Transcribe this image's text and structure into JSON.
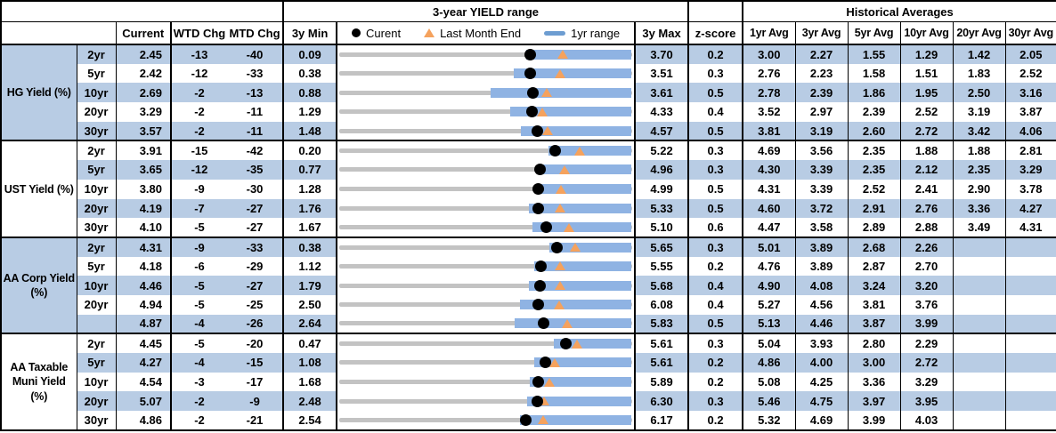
{
  "header": {
    "yield_range_title": "3-year YIELD range",
    "historical_title": "Historical Averages",
    "col_current": "Current",
    "col_wtd": "WTD Chg",
    "col_mtd": "MTD Chg",
    "col_3y_min": "3y Min",
    "col_3y_max": "3y Max",
    "col_zscore": "z-score",
    "avg_cols": [
      "1yr Avg",
      "3yr Avg",
      "5yr Avg",
      "10yr Avg",
      "20yr Avg",
      "30yr Avg"
    ],
    "legend": {
      "current": "Curent",
      "last_month": "Last Month End",
      "range": "1yr range"
    }
  },
  "colors": {
    "row_shade": "#b8cce4",
    "range_bar_blue": "#8fb3e3",
    "track_gray": "#c3c3c3",
    "last_month_marker_orange": "#f5a25d",
    "current_marker_black": "#000000"
  },
  "sections": [
    {
      "label": "HG Yield (%)",
      "rows": [
        {
          "tenor": "2yr",
          "current": "2.45",
          "wtd_chg": "-13",
          "mtd_chg": "-40",
          "min_3y": "0.09",
          "max_3y": "3.70",
          "z_score": "0.2",
          "avgs": [
            "3.00",
            "2.27",
            "1.55",
            "1.29",
            "1.42",
            "2.05"
          ],
          "range_1yr": [
            2.4,
            3.7
          ],
          "last_month_end": 2.85
        },
        {
          "tenor": "5yr",
          "current": "2.42",
          "wtd_chg": "-12",
          "mtd_chg": "-33",
          "min_3y": "0.38",
          "max_3y": "3.51",
          "z_score": "0.3",
          "avgs": [
            "2.76",
            "2.23",
            "1.58",
            "1.51",
            "1.83",
            "2.52"
          ],
          "range_1yr": [
            2.25,
            3.51
          ],
          "last_month_end": 2.75
        },
        {
          "tenor": "10yr",
          "current": "2.69",
          "wtd_chg": "-2",
          "mtd_chg": "-13",
          "min_3y": "0.88",
          "max_3y": "3.61",
          "z_score": "0.5",
          "avgs": [
            "2.78",
            "2.39",
            "1.86",
            "1.95",
            "2.50",
            "3.16"
          ],
          "range_1yr": [
            2.29,
            3.61
          ],
          "last_month_end": 2.82
        },
        {
          "tenor": "20yr",
          "current": "3.29",
          "wtd_chg": "-2",
          "mtd_chg": "-11",
          "min_3y": "1.29",
          "max_3y": "4.33",
          "z_score": "0.4",
          "avgs": [
            "3.52",
            "2.97",
            "2.39",
            "2.52",
            "3.19",
            "3.87"
          ],
          "range_1yr": [
            3.07,
            4.33
          ],
          "last_month_end": 3.4
        },
        {
          "tenor": "30yr",
          "current": "3.57",
          "wtd_chg": "-2",
          "mtd_chg": "-11",
          "min_3y": "1.48",
          "max_3y": "4.57",
          "z_score": "0.5",
          "avgs": [
            "3.81",
            "3.19",
            "2.60",
            "2.72",
            "3.42",
            "4.06"
          ],
          "range_1yr": [
            3.4,
            4.57
          ],
          "last_month_end": 3.68
        }
      ]
    },
    {
      "label": "UST Yield (%)",
      "rows": [
        {
          "tenor": "2yr",
          "current": "3.91",
          "wtd_chg": "-15",
          "mtd_chg": "-42",
          "min_3y": "0.20",
          "max_3y": "5.22",
          "z_score": "0.3",
          "avgs": [
            "4.69",
            "3.56",
            "2.35",
            "1.88",
            "1.88",
            "2.81"
          ],
          "range_1yr": [
            3.79,
            5.22
          ],
          "last_month_end": 4.33
        },
        {
          "tenor": "5yr",
          "current": "3.65",
          "wtd_chg": "-12",
          "mtd_chg": "-35",
          "min_3y": "0.77",
          "max_3y": "4.96",
          "z_score": "0.3",
          "avgs": [
            "4.30",
            "3.39",
            "2.35",
            "2.12",
            "2.35",
            "3.29"
          ],
          "range_1yr": [
            3.61,
            4.96
          ],
          "last_month_end": 4.0
        },
        {
          "tenor": "10yr",
          "current": "3.80",
          "wtd_chg": "-9",
          "mtd_chg": "-30",
          "min_3y": "1.28",
          "max_3y": "4.99",
          "z_score": "0.5",
          "avgs": [
            "4.31",
            "3.39",
            "2.52",
            "2.41",
            "2.90",
            "3.78"
          ],
          "range_1yr": [
            3.76,
            4.99
          ],
          "last_month_end": 4.1
        },
        {
          "tenor": "20yr",
          "current": "4.19",
          "wtd_chg": "-7",
          "mtd_chg": "-27",
          "min_3y": "1.76",
          "max_3y": "5.33",
          "z_score": "0.5",
          "avgs": [
            "4.60",
            "3.72",
            "2.91",
            "2.76",
            "3.36",
            "4.27"
          ],
          "range_1yr": [
            4.08,
            5.33
          ],
          "last_month_end": 4.46
        },
        {
          "tenor": "30yr",
          "current": "4.10",
          "wtd_chg": "-5",
          "mtd_chg": "-27",
          "min_3y": "1.67",
          "max_3y": "5.10",
          "z_score": "0.6",
          "avgs": [
            "4.47",
            "3.58",
            "2.89",
            "2.88",
            "3.49",
            "4.31"
          ],
          "range_1yr": [
            3.94,
            5.1
          ],
          "last_month_end": 4.37
        }
      ]
    },
    {
      "label": "AA Corp Yield (%)",
      "rows": [
        {
          "tenor": "2yr",
          "current": "4.31",
          "wtd_chg": "-9",
          "mtd_chg": "-33",
          "min_3y": "0.38",
          "max_3y": "5.65",
          "z_score": "0.3",
          "avgs": [
            "5.01",
            "3.89",
            "2.68",
            "2.26",
            "",
            ""
          ],
          "range_1yr": [
            4.17,
            5.65
          ],
          "last_month_end": 4.64
        },
        {
          "tenor": "5yr",
          "current": "4.18",
          "wtd_chg": "-6",
          "mtd_chg": "-29",
          "min_3y": "1.12",
          "max_3y": "5.55",
          "z_score": "0.2",
          "avgs": [
            "4.76",
            "3.89",
            "2.87",
            "2.70",
            "",
            ""
          ],
          "range_1yr": [
            4.07,
            5.55
          ],
          "last_month_end": 4.47
        },
        {
          "tenor": "10yr",
          "current": "4.46",
          "wtd_chg": "-5",
          "mtd_chg": "-27",
          "min_3y": "1.79",
          "max_3y": "5.68",
          "z_score": "0.4",
          "avgs": [
            "4.90",
            "4.08",
            "3.24",
            "3.20",
            "",
            ""
          ],
          "range_1yr": [
            4.31,
            5.68
          ],
          "last_month_end": 4.73
        },
        {
          "tenor": "20yr",
          "current": "4.94",
          "wtd_chg": "-5",
          "mtd_chg": "-25",
          "min_3y": "2.50",
          "max_3y": "6.08",
          "z_score": "0.4",
          "avgs": [
            "5.27",
            "4.56",
            "3.81",
            "3.76",
            "",
            ""
          ],
          "range_1yr": [
            4.71,
            6.08
          ],
          "last_month_end": 5.19
        },
        {
          "tenor": "",
          "current": "4.87",
          "wtd_chg": "-4",
          "mtd_chg": "-26",
          "min_3y": "2.64",
          "max_3y": "5.83",
          "z_score": "0.5",
          "avgs": [
            "5.13",
            "4.46",
            "3.87",
            "3.99",
            "",
            ""
          ],
          "range_1yr": [
            4.55,
            5.83
          ],
          "last_month_end": 5.13
        }
      ]
    },
    {
      "label": "AA Taxable Muni Yield (%)",
      "rows": [
        {
          "tenor": "2yr",
          "current": "4.45",
          "wtd_chg": "-5",
          "mtd_chg": "-20",
          "min_3y": "0.47",
          "max_3y": "5.61",
          "z_score": "0.3",
          "avgs": [
            "5.04",
            "3.93",
            "2.80",
            "2.29",
            "",
            ""
          ],
          "range_1yr": [
            4.25,
            5.61
          ],
          "last_month_end": 4.65
        },
        {
          "tenor": "5yr",
          "current": "4.27",
          "wtd_chg": "-4",
          "mtd_chg": "-15",
          "min_3y": "1.08",
          "max_3y": "5.61",
          "z_score": "0.2",
          "avgs": [
            "4.86",
            "4.00",
            "3.00",
            "2.72",
            "",
            ""
          ],
          "range_1yr": [
            4.1,
            5.61
          ],
          "last_month_end": 4.42
        },
        {
          "tenor": "10yr",
          "current": "4.54",
          "wtd_chg": "-3",
          "mtd_chg": "-17",
          "min_3y": "1.68",
          "max_3y": "5.89",
          "z_score": "0.2",
          "avgs": [
            "5.08",
            "4.25",
            "3.36",
            "3.29",
            "",
            ""
          ],
          "range_1yr": [
            4.42,
            5.89
          ],
          "last_month_end": 4.71
        },
        {
          "tenor": "20yr",
          "current": "5.07",
          "wtd_chg": "-2",
          "mtd_chg": "-9",
          "min_3y": "2.48",
          "max_3y": "6.30",
          "z_score": "0.3",
          "avgs": [
            "5.46",
            "4.75",
            "3.97",
            "3.95",
            "",
            ""
          ],
          "range_1yr": [
            4.93,
            6.3
          ],
          "last_month_end": 5.16
        },
        {
          "tenor": "30yr",
          "current": "4.86",
          "wtd_chg": "-2",
          "mtd_chg": "-21",
          "min_3y": "2.54",
          "max_3y": "6.17",
          "z_score": "0.2",
          "avgs": [
            "5.32",
            "4.69",
            "3.99",
            "4.03",
            "",
            ""
          ],
          "range_1yr": [
            4.78,
            6.17
          ],
          "last_month_end": 5.07
        }
      ]
    }
  ],
  "chart_data": {
    "type": "range",
    "title": "3-year YIELD range",
    "legend": [
      "Curent",
      "Last Month End",
      "1yr range"
    ],
    "x_unit": "yield %",
    "note": "Each row is a horizontal range strip: gray track spans 3y min to 3y max; blue bar is the 1yr range (1yr max coincides with 3y max; 1yr min estimated from bar position); black dot = current; orange triangle = last month end (current minus MTD chg in bp).",
    "columns": [
      "group",
      "tenor",
      "min_3y",
      "min_1yr_est",
      "current",
      "last_month_end",
      "max_3y_and_1yr"
    ],
    "rows": [
      [
        "HG Yield (%)",
        "2yr",
        0.09,
        2.4,
        2.45,
        2.85,
        3.7
      ],
      [
        "HG Yield (%)",
        "5yr",
        0.38,
        2.25,
        2.42,
        2.75,
        3.51
      ],
      [
        "HG Yield (%)",
        "10yr",
        0.88,
        2.29,
        2.69,
        2.82,
        3.61
      ],
      [
        "HG Yield (%)",
        "20yr",
        1.29,
        3.07,
        3.29,
        3.4,
        4.33
      ],
      [
        "HG Yield (%)",
        "30yr",
        1.48,
        3.4,
        3.57,
        3.68,
        4.57
      ],
      [
        "UST Yield (%)",
        "2yr",
        0.2,
        3.79,
        3.91,
        4.33,
        5.22
      ],
      [
        "UST Yield (%)",
        "5yr",
        0.77,
        3.61,
        3.65,
        4.0,
        4.96
      ],
      [
        "UST Yield (%)",
        "10yr",
        1.28,
        3.76,
        3.8,
        4.1,
        4.99
      ],
      [
        "UST Yield (%)",
        "20yr",
        1.76,
        4.08,
        4.19,
        4.46,
        5.33
      ],
      [
        "UST Yield (%)",
        "30yr",
        1.67,
        3.94,
        4.1,
        4.37,
        5.1
      ],
      [
        "AA Corp Yield (%)",
        "2yr",
        0.38,
        4.17,
        4.31,
        4.64,
        5.65
      ],
      [
        "AA Corp Yield (%)",
        "5yr",
        1.12,
        4.07,
        4.18,
        4.47,
        5.55
      ],
      [
        "AA Corp Yield (%)",
        "10yr",
        1.79,
        4.31,
        4.46,
        4.73,
        5.68
      ],
      [
        "AA Corp Yield (%)",
        "20yr",
        2.5,
        4.71,
        4.94,
        5.19,
        6.08
      ],
      [
        "AA Corp Yield (%)",
        "",
        2.64,
        4.55,
        4.87,
        5.13,
        5.83
      ],
      [
        "AA Taxable Muni Yield (%)",
        "2yr",
        0.47,
        4.25,
        4.45,
        4.65,
        5.61
      ],
      [
        "AA Taxable Muni Yield (%)",
        "5yr",
        1.08,
        4.1,
        4.27,
        4.42,
        5.61
      ],
      [
        "AA Taxable Muni Yield (%)",
        "10yr",
        1.68,
        4.42,
        4.54,
        4.71,
        5.89
      ],
      [
        "AA Taxable Muni Yield (%)",
        "20yr",
        2.48,
        4.93,
        5.07,
        5.16,
        6.3
      ],
      [
        "AA Taxable Muni Yield (%)",
        "30yr",
        2.54,
        4.78,
        4.86,
        5.07,
        6.17
      ]
    ]
  }
}
